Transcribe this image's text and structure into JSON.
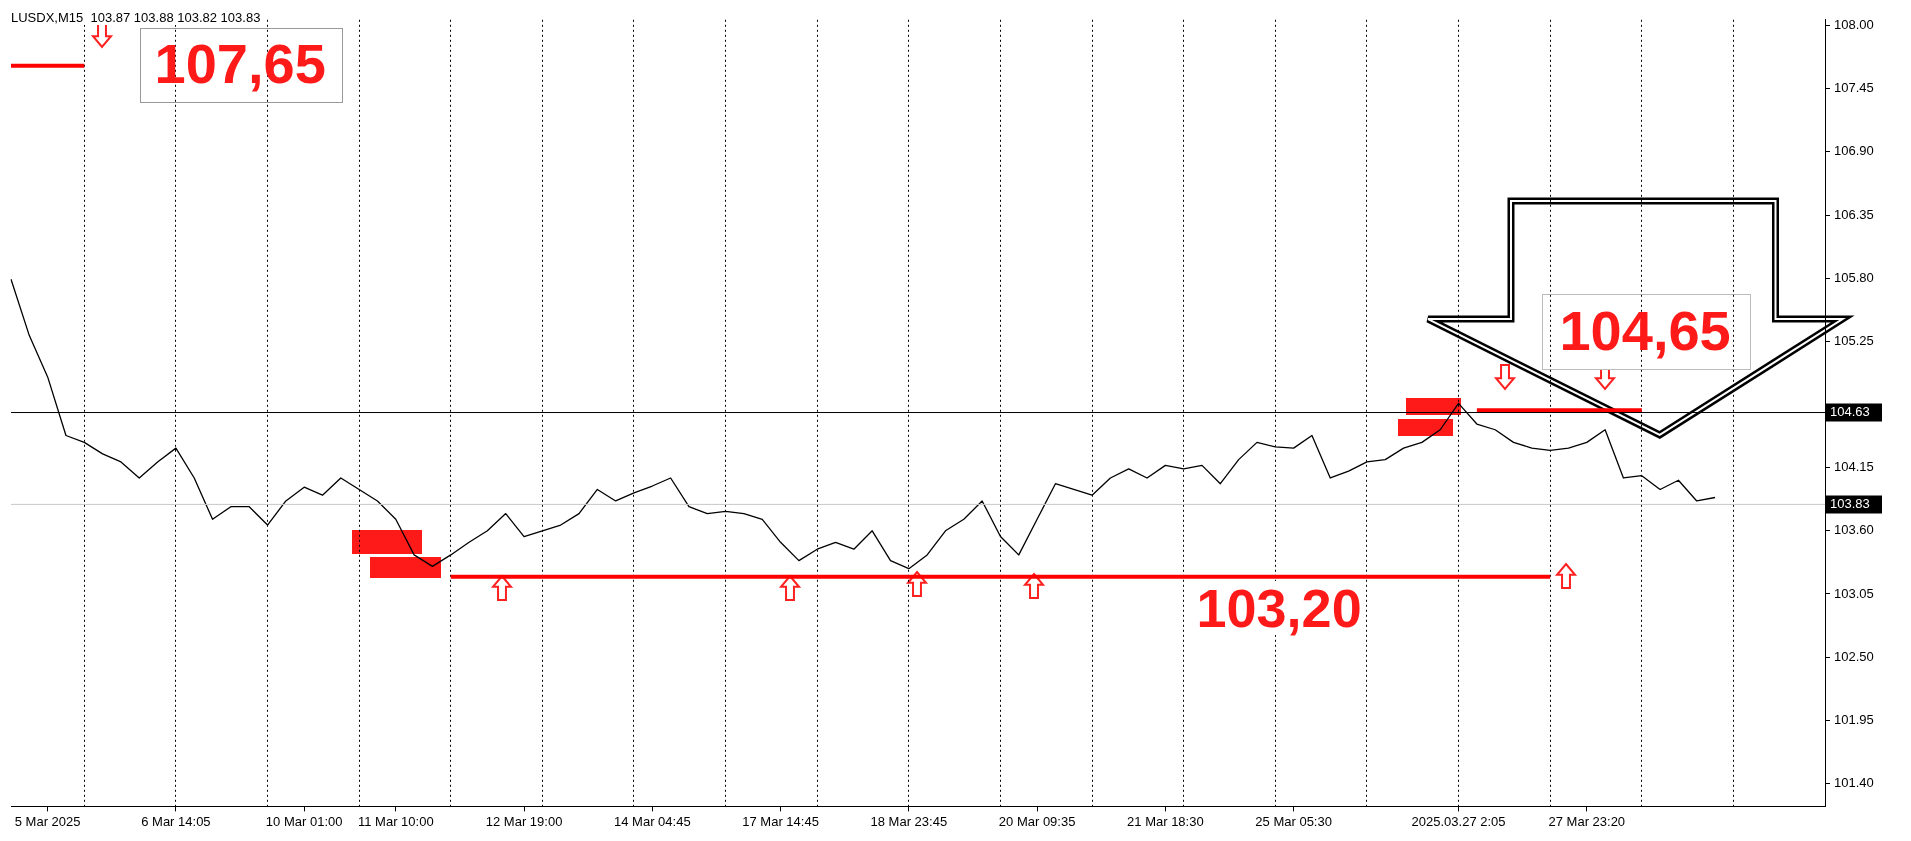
{
  "chart_data": {
    "type": "line",
    "categories": [
      null,
      null,
      "5 Mar 2025",
      null,
      null,
      null,
      null,
      null,
      null,
      "6 Mar 14:05",
      null,
      null,
      null,
      null,
      null,
      null,
      "10 Mar 01:00",
      null,
      null,
      null,
      null,
      "11 Mar 10:00",
      null,
      null,
      null,
      null,
      null,
      null,
      "12 Mar 19:00",
      null,
      null,
      null,
      null,
      null,
      null,
      "14 Mar 04:45",
      null,
      null,
      null,
      null,
      null,
      null,
      "17 Mar 14:45",
      null,
      null,
      null,
      null,
      null,
      null,
      "18 Mar 23:45",
      null,
      null,
      null,
      null,
      null,
      null,
      "20 Mar 09:35",
      null,
      null,
      null,
      null,
      null,
      null,
      "21 Mar 18:30",
      null,
      null,
      null,
      null,
      null,
      null,
      "25 Mar 05:30",
      null,
      null,
      null,
      null,
      null,
      null,
      null,
      null,
      "2025.03.27 2:05",
      null,
      null,
      null,
      null,
      null,
      null,
      "27 Mar 23:20",
      null,
      null,
      null,
      null,
      null,
      null,
      null,
      null,
      null,
      null,
      null,
      null,
      null
    ],
    "series": [
      {
        "color": "#000000",
        "values": [
          105.79,
          105.3,
          104.94,
          104.43,
          104.37,
          104.27,
          104.2,
          104.06,
          104.2,
          104.32,
          104.06,
          103.7,
          103.81,
          103.81,
          103.65,
          103.86,
          103.98,
          103.91,
          104.06,
          103.96,
          103.86,
          103.7,
          103.39,
          103.29,
          103.39,
          103.5,
          103.6,
          103.75,
          103.55,
          103.6,
          103.65,
          103.75,
          103.96,
          103.86,
          103.93,
          103.99,
          104.06,
          103.81,
          103.75,
          103.77,
          103.75,
          103.7,
          103.5,
          103.34,
          103.44,
          103.5,
          103.44,
          103.6,
          103.34,
          103.27,
          103.39,
          103.6,
          103.7,
          103.86,
          103.55,
          103.39,
          103.7,
          104.01,
          103.96,
          103.91,
          104.06,
          104.14,
          104.06,
          104.17,
          104.14,
          104.17,
          104.01,
          104.22,
          104.37,
          104.33,
          104.32,
          104.43,
          104.06,
          104.12,
          104.2,
          104.22,
          104.32,
          104.37,
          104.48,
          104.71,
          104.53,
          104.48,
          104.37,
          104.32,
          104.3,
          104.32,
          104.37,
          104.48,
          104.06,
          104.08,
          103.96,
          104.04,
          103.86,
          103.89,
          null,
          null,
          null,
          null,
          null,
          null
        ]
      },
      {
        "color": "#ff0000",
        "values": [
          null,
          null,
          null,
          null,
          null,
          null,
          null,
          null,
          null,
          null,
          null,
          null,
          null,
          null,
          null,
          null,
          null,
          null,
          null,
          null,
          null,
          null,
          null,
          null,
          103.2,
          103.2,
          103.2,
          103.2,
          103.2,
          103.2,
          103.2,
          103.2,
          103.2,
          103.2,
          103.2,
          103.2,
          103.2,
          103.2,
          103.2,
          103.2,
          103.2,
          103.2,
          103.2,
          103.2,
          103.2,
          103.2,
          103.2,
          103.2,
          103.2,
          103.2,
          103.2,
          103.2,
          103.2,
          103.2,
          103.2,
          103.2,
          103.2,
          103.2,
          103.2,
          103.2,
          103.2,
          103.2,
          103.2,
          103.2,
          103.2,
          103.2,
          103.2,
          103.2,
          103.2,
          103.2,
          103.2,
          103.2,
          103.2,
          103.2,
          103.2,
          103.2,
          103.2,
          103.2,
          103.2,
          103.2,
          103.2,
          103.2,
          103.2,
          103.2,
          103.2,
          null,
          null,
          null,
          null,
          null,
          null,
          null,
          null,
          null,
          null,
          null,
          null,
          null,
          null,
          null
        ]
      },
      {
        "color": "#ff0000",
        "values": [
          null,
          null,
          null,
          null,
          null,
          null,
          null,
          null,
          null,
          null,
          null,
          null,
          null,
          null,
          null,
          null,
          null,
          null,
          null,
          null,
          null,
          null,
          null,
          null,
          null,
          null,
          null,
          null,
          null,
          null,
          null,
          null,
          null,
          null,
          null,
          null,
          null,
          null,
          null,
          null,
          null,
          null,
          null,
          null,
          null,
          null,
          null,
          null,
          null,
          null,
          null,
          null,
          null,
          null,
          null,
          null,
          null,
          null,
          null,
          null,
          null,
          null,
          null,
          null,
          null,
          null,
          null,
          null,
          null,
          null,
          null,
          null,
          null,
          null,
          null,
          null,
          null,
          null,
          null,
          null,
          104.65,
          104.65,
          104.65,
          104.65,
          104.65,
          104.65,
          104.65,
          104.65,
          104.65,
          104.65,
          null,
          null,
          null,
          null,
          null,
          null,
          null,
          null,
          null,
          null
        ]
      },
      {
        "color": "#ff0000",
        "values": [
          107.65,
          107.65,
          107.65,
          107.65,
          107.65,
          null,
          null,
          null,
          null,
          null,
          null,
          null,
          null,
          null,
          null,
          null,
          null,
          null,
          null,
          null,
          null,
          null,
          null,
          null,
          null,
          null,
          null,
          null,
          null,
          null,
          null,
          null,
          null,
          null,
          null,
          null,
          null,
          null,
          null,
          null,
          null,
          null,
          null,
          null,
          null,
          null,
          null,
          null,
          null,
          null,
          null,
          null,
          null,
          null,
          null,
          null,
          null,
          null,
          null,
          null,
          null,
          null,
          null,
          null,
          null,
          null,
          null,
          null,
          null,
          null,
          null,
          null,
          null,
          null,
          null,
          null,
          null,
          null,
          null,
          null,
          null,
          null,
          null,
          null,
          null,
          null,
          null,
          null,
          null,
          null,
          null,
          null,
          null,
          null,
          null,
          null,
          null,
          null,
          null,
          null
        ]
      }
    ],
    "ylim": [
      101.2,
      108.05
    ],
    "yticks": [
      {
        "value": 108,
        "label": "108.00"
      },
      107.45,
      {
        "value": 106.9,
        "label": "106.90"
      },
      106.35,
      {
        "value": 105.8,
        "label": "105.80"
      },
      105.25,
      104.15,
      {
        "value": 103.6,
        "label": "103.60"
      },
      103.05,
      {
        "value": 102.5,
        "label": "102.50"
      },
      101.95,
      {
        "value": 101.4,
        "label": "101.40"
      }
    ],
    "grid": "x",
    "marker": "none",
    "ref_lines": [
      {
        "axis": "y",
        "value": 104.63,
        "label": "104.63",
        "color": "#000000"
      },
      {
        "axis": "y",
        "value": 103.83,
        "label": "103.83",
        "color": "#c8c8c8"
      }
    ],
    "annotations": [
      "LUSDX,M15  103.87 103.88 103.82 103.83",
      "107,65",
      "104,65",
      "103,20"
    ]
  }
}
